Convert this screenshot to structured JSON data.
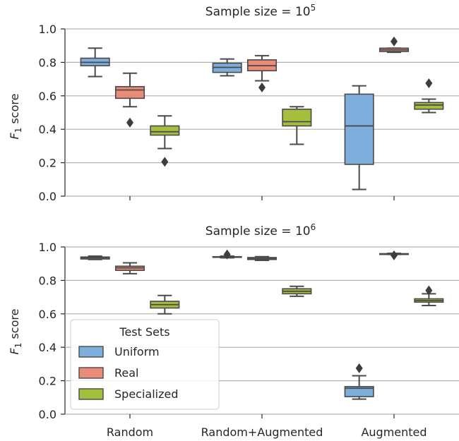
{
  "chart_data": [
    {
      "type": "box",
      "title": "Sample size = 10",
      "title_sup": "5",
      "ylabel": "F",
      "ylabel_sub": "1",
      "ylabel_rest": " score",
      "ylim": [
        0.0,
        1.0
      ],
      "yticks": [
        "0.0",
        "0.2",
        "0.4",
        "0.6",
        "0.8",
        "1.0"
      ],
      "grid": "horizontal",
      "categories": [
        "Random",
        "Random+Augmented",
        "Augmented"
      ],
      "series": [
        {
          "name": "Uniform",
          "color": "#7eaedc",
          "boxes": [
            {
              "whislo": 0.715,
              "q1": 0.78,
              "med": 0.8,
              "q3": 0.825,
              "whishi": 0.885,
              "fliers": []
            },
            {
              "whislo": 0.72,
              "q1": 0.74,
              "med": 0.77,
              "q3": 0.795,
              "whishi": 0.82,
              "fliers": []
            },
            {
              "whislo": 0.04,
              "q1": 0.19,
              "med": 0.42,
              "q3": 0.61,
              "whishi": 0.66,
              "fliers": []
            }
          ]
        },
        {
          "name": "Real",
          "color": "#e98c78",
          "boxes": [
            {
              "whislo": 0.535,
              "q1": 0.585,
              "med": 0.635,
              "q3": 0.655,
              "whishi": 0.735,
              "fliers": [
                0.44
              ]
            },
            {
              "whislo": 0.69,
              "q1": 0.75,
              "med": 0.78,
              "q3": 0.815,
              "whishi": 0.84,
              "fliers": [
                0.65
              ]
            },
            {
              "whislo": 0.86,
              "q1": 0.865,
              "med": 0.875,
              "q3": 0.885,
              "whishi": 0.885,
              "fliers": [
                0.925
              ]
            }
          ]
        },
        {
          "name": "Specialized",
          "color": "#a4bf3e",
          "boxes": [
            {
              "whislo": 0.285,
              "q1": 0.365,
              "med": 0.385,
              "q3": 0.42,
              "whishi": 0.48,
              "fliers": [
                0.205
              ]
            },
            {
              "whislo": 0.31,
              "q1": 0.42,
              "med": 0.445,
              "q3": 0.52,
              "whishi": 0.535,
              "fliers": []
            },
            {
              "whislo": 0.5,
              "q1": 0.52,
              "med": 0.545,
              "q3": 0.56,
              "whishi": 0.58,
              "fliers": [
                0.675
              ]
            }
          ]
        }
      ]
    },
    {
      "type": "box",
      "title": "Sample size = 10",
      "title_sup": "6",
      "ylabel": "F",
      "ylabel_sub": "1",
      "ylabel_rest": " score",
      "ylim": [
        0.0,
        1.0
      ],
      "yticks": [
        "0.0",
        "0.2",
        "0.4",
        "0.6",
        "0.8",
        "1.0"
      ],
      "grid": "horizontal",
      "categories": [
        "Random",
        "Random+Augmented",
        "Augmented"
      ],
      "series": [
        {
          "name": "Uniform",
          "color": "#7eaedc",
          "boxes": [
            {
              "whislo": 0.925,
              "q1": 0.928,
              "med": 0.935,
              "q3": 0.94,
              "whishi": 0.945,
              "fliers": []
            },
            {
              "whislo": 0.935,
              "q1": 0.938,
              "med": 0.94,
              "q3": 0.942,
              "whishi": 0.945,
              "fliers": [
                0.955
              ]
            },
            {
              "whislo": 0.09,
              "q1": 0.105,
              "med": 0.155,
              "q3": 0.165,
              "whishi": 0.23,
              "fliers": [
                0.275
              ]
            }
          ]
        },
        {
          "name": "Real",
          "color": "#e98c78",
          "boxes": [
            {
              "whislo": 0.84,
              "q1": 0.86,
              "med": 0.875,
              "q3": 0.885,
              "whishi": 0.905,
              "fliers": []
            },
            {
              "whislo": 0.92,
              "q1": 0.925,
              "med": 0.93,
              "q3": 0.937,
              "whishi": 0.942,
              "fliers": []
            },
            {
              "whislo": 0.955,
              "q1": 0.955,
              "med": 0.957,
              "q3": 0.96,
              "whishi": 0.962,
              "fliers": [
                0.95
              ]
            }
          ]
        },
        {
          "name": "Specialized",
          "color": "#a4bf3e",
          "boxes": [
            {
              "whislo": 0.6,
              "q1": 0.635,
              "med": 0.655,
              "q3": 0.675,
              "whishi": 0.71,
              "fliers": []
            },
            {
              "whislo": 0.705,
              "q1": 0.72,
              "med": 0.735,
              "q3": 0.75,
              "whishi": 0.765,
              "fliers": []
            },
            {
              "whislo": 0.65,
              "q1": 0.67,
              "med": 0.68,
              "q3": 0.69,
              "whishi": 0.72,
              "fliers": [
                0.74
              ]
            }
          ]
        }
      ]
    }
  ],
  "legend": {
    "title": "Test Sets",
    "placement": "lower-left of bottom panel",
    "entries": [
      "Uniform",
      "Real",
      "Specialized"
    ]
  }
}
